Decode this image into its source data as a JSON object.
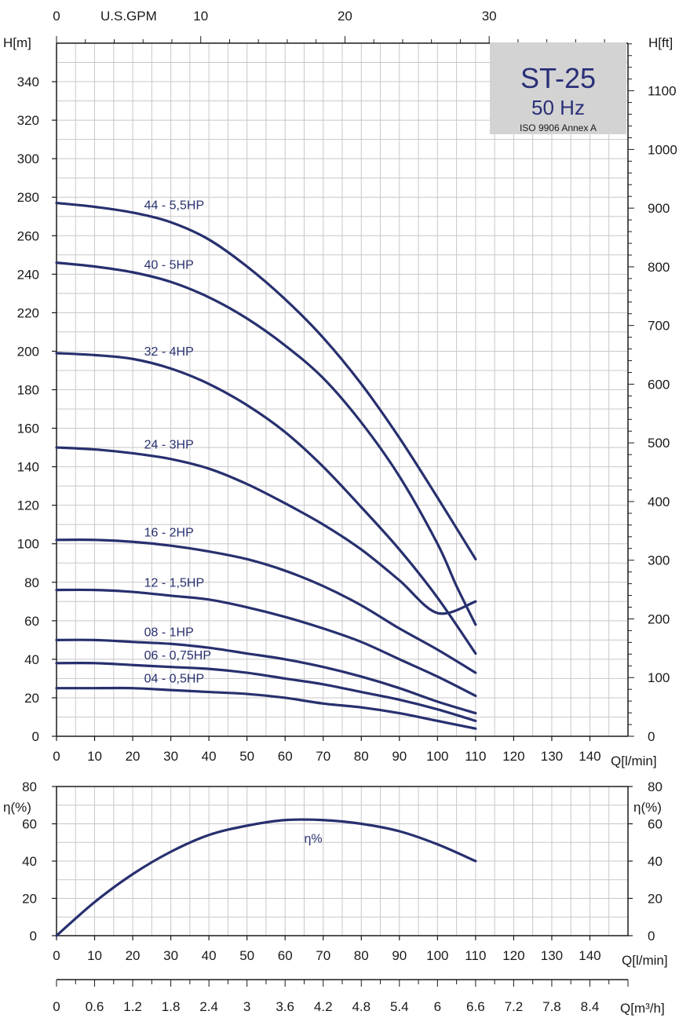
{
  "chart_data": [
    {
      "type": "line",
      "title": "ST-25",
      "subtitle": "50 Hz",
      "note": "ISO 9906 Annex A",
      "xlabel": "Q[l/min]",
      "ylabel": "H[m]",
      "ylabel_right": "H[ft]",
      "xlabel_top": "U.S.GPM",
      "xlim": [
        0,
        150
      ],
      "ylim": [
        0,
        360
      ],
      "ylim_right_ft": [
        0,
        1181
      ],
      "xlim_top_gpm": [
        0,
        39.6
      ],
      "grid": true,
      "x_ticks": [
        0,
        10,
        20,
        30,
        40,
        50,
        60,
        70,
        80,
        90,
        100,
        110,
        120,
        130,
        140
      ],
      "y_ticks": [
        0,
        20,
        40,
        60,
        80,
        100,
        120,
        140,
        160,
        180,
        200,
        220,
        240,
        260,
        280,
        300,
        320,
        340
      ],
      "y_right_ticks": [
        0,
        100,
        200,
        300,
        400,
        500,
        600,
        700,
        800,
        900,
        1000,
        1100
      ],
      "x_top_ticks": [
        0,
        10,
        20,
        30
      ],
      "series": [
        {
          "name": "44 - 5,5HP",
          "x": [
            0,
            10,
            20,
            30,
            40,
            50,
            60,
            70,
            80,
            90,
            100,
            110
          ],
          "y": [
            277,
            275,
            272,
            267,
            258,
            244,
            227,
            207,
            183,
            155,
            124,
            92
          ]
        },
        {
          "name": "40 - 5HP",
          "x": [
            0,
            10,
            20,
            30,
            40,
            50,
            60,
            70,
            80,
            90,
            100,
            105,
            110
          ],
          "y": [
            246,
            244,
            241,
            236,
            228,
            217,
            203,
            186,
            163,
            135,
            100,
            78,
            58
          ]
        },
        {
          "name": "32 - 4HP",
          "x": [
            0,
            10,
            20,
            30,
            40,
            50,
            60,
            70,
            80,
            90,
            100,
            110
          ],
          "y": [
            199,
            198,
            196,
            191,
            183,
            172,
            158,
            140,
            119,
            97,
            72,
            43
          ]
        },
        {
          "name": "24 - 3HP",
          "x": [
            0,
            10,
            20,
            30,
            40,
            50,
            60,
            70,
            80,
            90,
            100,
            110
          ],
          "y": [
            150,
            149,
            147,
            144,
            139,
            131,
            121,
            110,
            97,
            81,
            64,
            70
          ]
        },
        {
          "name": "16 - 2HP",
          "x": [
            0,
            10,
            20,
            30,
            40,
            50,
            60,
            70,
            80,
            90,
            100,
            110
          ],
          "y": [
            102,
            102,
            101,
            99,
            96,
            92,
            86,
            78,
            68,
            56,
            45,
            33
          ]
        },
        {
          "name": "12 - 1,5HP",
          "x": [
            0,
            10,
            20,
            30,
            40,
            50,
            60,
            70,
            80,
            90,
            100,
            110
          ],
          "y": [
            76,
            76,
            75,
            73,
            71,
            67,
            62,
            56,
            49,
            40,
            31,
            21
          ]
        },
        {
          "name": "08 - 1HP",
          "x": [
            0,
            10,
            20,
            30,
            40,
            50,
            60,
            70,
            80,
            90,
            100,
            110
          ],
          "y": [
            50,
            50,
            49,
            48,
            46,
            43,
            40,
            36,
            31,
            25,
            18,
            12
          ]
        },
        {
          "name": "06 - 0,75HP",
          "x": [
            0,
            10,
            20,
            30,
            40,
            50,
            60,
            70,
            80,
            90,
            100,
            110
          ],
          "y": [
            38,
            38,
            37,
            36,
            35,
            33,
            30,
            27,
            23,
            19,
            14,
            8
          ]
        },
        {
          "name": "04 - 0,5HP",
          "x": [
            0,
            10,
            20,
            30,
            40,
            50,
            60,
            70,
            80,
            90,
            100,
            110
          ],
          "y": [
            25,
            25,
            25,
            24,
            23,
            22,
            20,
            17,
            15,
            12,
            8,
            4
          ]
        }
      ]
    },
    {
      "type": "line",
      "xlabel": "Q[l/min]",
      "ylabel": "η(%)",
      "ylabel_right": "η(%)",
      "xlim": [
        0,
        150
      ],
      "ylim": [
        0,
        80
      ],
      "grid": true,
      "x_ticks": [
        0,
        10,
        20,
        30,
        40,
        50,
        60,
        70,
        80,
        90,
        100,
        110,
        120,
        130,
        140
      ],
      "y_ticks": [
        0,
        20,
        40,
        60,
        80
      ],
      "series": [
        {
          "name": "η%",
          "x": [
            0,
            10,
            20,
            30,
            40,
            50,
            60,
            70,
            80,
            90,
            100,
            110
          ],
          "y": [
            0,
            18,
            33,
            45,
            54,
            59,
            62,
            62,
            60,
            56,
            49,
            40
          ]
        }
      ],
      "secondary_axis": {
        "label": "Q[m³/h]",
        "ticks": [
          "0",
          "0.6",
          "1.2",
          "1.8",
          "2.4",
          "3",
          "3.6",
          "4.2",
          "4.8",
          "5.4",
          "6",
          "6.6",
          "7.2",
          "7.8",
          "8.4"
        ]
      }
    }
  ],
  "colors": {
    "curve": "#27306e",
    "grid": "#c8c8c8",
    "axis": "#1a1a1a",
    "title_box": "#d3d3d3",
    "title_text": "#2a2f78"
  }
}
